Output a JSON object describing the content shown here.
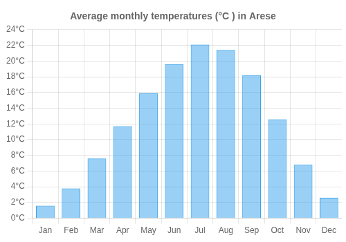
{
  "chart_data": {
    "type": "bar",
    "title": "Average monthly temperatures (°C ) in Arese",
    "categories": [
      "Jan",
      "Feb",
      "Mar",
      "Apr",
      "May",
      "Jun",
      "Jul",
      "Aug",
      "Sep",
      "Oct",
      "Nov",
      "Dec"
    ],
    "values": [
      1.6,
      3.8,
      7.6,
      11.7,
      15.9,
      19.6,
      22.1,
      21.4,
      18.2,
      12.6,
      6.8,
      2.6
    ],
    "ylim": [
      0,
      24
    ],
    "yticks": [
      {
        "value": 0,
        "label": "0°C"
      },
      {
        "value": 2,
        "label": "2°C"
      },
      {
        "value": 4,
        "label": "4°C"
      },
      {
        "value": 6,
        "label": "6°C"
      },
      {
        "value": 8,
        "label": "8°C"
      },
      {
        "value": 10,
        "label": "10°C"
      },
      {
        "value": 12,
        "label": "12°C"
      },
      {
        "value": 14,
        "label": "14°C"
      },
      {
        "value": 16,
        "label": "16°C"
      },
      {
        "value": 18,
        "label": "18°C"
      },
      {
        "value": 20,
        "label": "20°C"
      },
      {
        "value": 22,
        "label": "22°C"
      },
      {
        "value": 24,
        "label": "24°C"
      }
    ],
    "grid": true
  }
}
